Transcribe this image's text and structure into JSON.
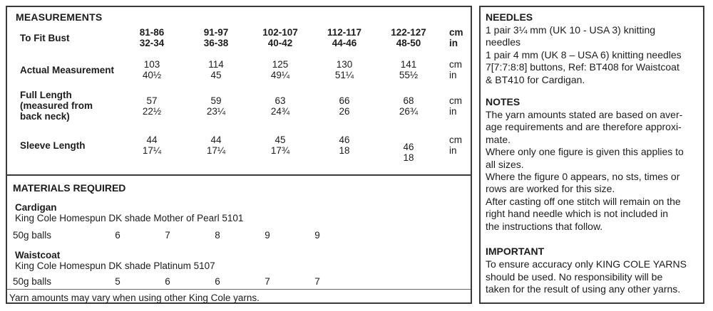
{
  "colors": {
    "border": "#3a3a3a",
    "text": "#1c1c1c",
    "background": "#ffffff"
  },
  "measurements": {
    "title": "MEASUREMENTS",
    "units": {
      "cm": "cm",
      "in": "in"
    },
    "rows": [
      {
        "label": "To Fit Bust",
        "values": [
          {
            "cm": "81-86",
            "in": "32-34"
          },
          {
            "cm": "91-97",
            "in": "36-38"
          },
          {
            "cm": "102-107",
            "in": "40-42"
          },
          {
            "cm": "112-117",
            "in": "44-46"
          },
          {
            "cm": "122-127",
            "in": "48-50"
          }
        ]
      },
      {
        "label": "Actual Measurement",
        "values": [
          {
            "cm": "103",
            "in": "40½"
          },
          {
            "cm": "114",
            "in": "45"
          },
          {
            "cm": "125",
            "in": "49¼"
          },
          {
            "cm": "130",
            "in": "51¼"
          },
          {
            "cm": "141",
            "in": "55½"
          }
        ]
      },
      {
        "label": "Full Length\n(measured from\nback neck)",
        "values": [
          {
            "cm": "57",
            "in": "22½"
          },
          {
            "cm": "59",
            "in": "23¼"
          },
          {
            "cm": "63",
            "in": "24¾"
          },
          {
            "cm": "66",
            "in": "26"
          },
          {
            "cm": "68",
            "in": "26¾"
          }
        ]
      },
      {
        "label": "Sleeve Length",
        "values": [
          {
            "cm": "44",
            "in": "17¼"
          },
          {
            "cm": "44",
            "in": "17¼"
          },
          {
            "cm": "45",
            "in": "17¾"
          },
          {
            "cm": "46",
            "in": "18"
          },
          {
            "cm": "46",
            "in": "18"
          }
        ]
      }
    ]
  },
  "materials": {
    "title": "MATERIALS REQUIRED",
    "items": [
      {
        "name": "Cardigan",
        "desc": "King Cole Homespun DK shade Mother of Pearl 5101",
        "unit_label": "50g balls",
        "values": [
          "6",
          "7",
          "8",
          "9",
          "9"
        ]
      },
      {
        "name": "Waistcoat",
        "desc": "King Cole Homespun DK shade Platinum 5107",
        "unit_label": "50g balls",
        "values": [
          "5",
          "6",
          "6",
          "7",
          "7"
        ]
      }
    ],
    "footer": "Yarn amounts may vary when using other King Cole yarns."
  },
  "right": {
    "needles": {
      "title": "NEEDLES",
      "lines": [
        "1 pair 3¼ mm (UK 10 - USA 3) knitting",
        "needles",
        "1 pair 4 mm (UK 8 – USA 6) knitting needles",
        "7[7:7:8:8] buttons, Ref: BT408 for Waistcoat",
        "& BT410 for Cardigan."
      ]
    },
    "notes": {
      "title": "NOTES",
      "lines": [
        "The yarn amounts stated are based on aver-",
        "age requirements and are therefore approxi-",
        "mate.",
        "Where only one figure is given this applies to",
        "all sizes.",
        "Where the figure 0 appears, no sts, times or",
        "rows are worked for this size.",
        "After casting off one stitch will remain on the",
        "right hand needle which is not included in",
        "the instructions that follow."
      ]
    },
    "important": {
      "title": "IMPORTANT",
      "lines": [
        "To ensure accuracy only KING COLE YARNS",
        "should be used. No responsibility will be",
        "taken for the result of using any other yarns."
      ]
    }
  }
}
